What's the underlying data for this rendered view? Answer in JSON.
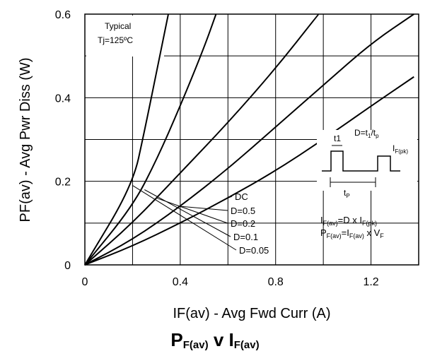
{
  "chart_data": {
    "type": "line",
    "xlabel": "IF(av) - Avg Fwd Curr (A)",
    "ylabel": "PF(av) - Avg Pwr Diss (W)",
    "xlim": [
      0,
      1.4
    ],
    "ylim": [
      0,
      0.6
    ],
    "x_ticks": [
      "0",
      "0.4",
      "0.8",
      "1.2"
    ],
    "y_ticks": [
      "0",
      "0.2",
      "0.4",
      "0.6"
    ],
    "grid": true,
    "title": {
      "main_p": "P",
      "main_p_sub": "F(av)",
      "main_v": " v ",
      "main_i": "I",
      "main_i_sub": "F(av)"
    },
    "annotation_lines": [
      "Typical",
      "Tj=125ºC"
    ],
    "series": [
      {
        "name": "DC",
        "x": [
          0,
          0.2,
          0.4,
          0.6,
          0.8,
          1.0,
          1.2,
          1.38
        ],
        "y": [
          0,
          0.045,
          0.1,
          0.16,
          0.225,
          0.3,
          0.38,
          0.45
        ]
      },
      {
        "name": "D=0.5",
        "x": [
          0,
          0.2,
          0.4,
          0.6,
          0.8,
          1.0,
          1.2,
          1.38
        ],
        "y": [
          0,
          0.06,
          0.14,
          0.23,
          0.33,
          0.43,
          0.53,
          0.6
        ]
      },
      {
        "name": "D=0.2",
        "x": [
          0,
          0.2,
          0.4,
          0.6,
          0.8,
          0.98
        ],
        "y": [
          0,
          0.1,
          0.22,
          0.34,
          0.47,
          0.6
        ]
      },
      {
        "name": "D=0.1",
        "x": [
          0,
          0.2,
          0.3,
          0.4,
          0.5,
          0.55
        ],
        "y": [
          0,
          0.14,
          0.25,
          0.38,
          0.52,
          0.6
        ]
      },
      {
        "name": "D=0.05",
        "x": [
          0,
          0.2,
          0.25,
          0.3,
          0.35
        ],
        "y": [
          0,
          0.19,
          0.32,
          0.46,
          0.6
        ]
      }
    ],
    "inset": {
      "t1": "t1",
      "duty": "D=t",
      "duty_sub1": "1",
      "duty_mid": "/t",
      "duty_sub2": "p",
      "peak": "I",
      "peak_sub": "F(pk)",
      "tp": "t",
      "tp_sub": "P",
      "formula1_main": "I",
      "formula1_sub": "F(av)",
      "formula1_rest": "=D x I",
      "formula1_sub2": "F(pk)",
      "formula2_main": "P",
      "formula2_sub": "F(av)",
      "formula2_mid": "=I",
      "formula2_sub2": "F(av)",
      "formula2_rest": " x V",
      "formula2_sub3": "F"
    }
  }
}
